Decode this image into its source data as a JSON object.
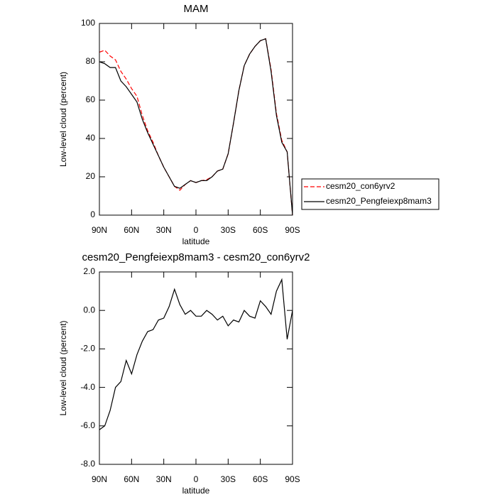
{
  "chart_data": [
    {
      "type": "line",
      "title": "MAM",
      "xlabel": "latitude",
      "ylabel": "Low-level cloud (percent)",
      "x": [
        90,
        85,
        80,
        75,
        70,
        65,
        60,
        55,
        50,
        45,
        40,
        35,
        30,
        25,
        20,
        15,
        10,
        5,
        0,
        -5,
        -10,
        -15,
        -20,
        -25,
        -30,
        -35,
        -40,
        -45,
        -50,
        -55,
        -60,
        -65,
        -70,
        -75,
        -80,
        -85,
        -90
      ],
      "series": [
        {
          "name": "cesm20_con6yrv2",
          "color": "#ff0000",
          "dash": true,
          "values": [
            85,
            86,
            83,
            81,
            75,
            71,
            66,
            62,
            52,
            44,
            38,
            31,
            25,
            20,
            15,
            13,
            16,
            18,
            17,
            18,
            18.5,
            20,
            23,
            24,
            32,
            48,
            65,
            78,
            84,
            88,
            91,
            92,
            76,
            53,
            39,
            33,
            0
          ]
        },
        {
          "name": "cesm20_Pengfeiexp8mam3",
          "color": "#000000",
          "dash": false,
          "values": [
            80,
            79,
            77,
            77,
            70,
            67,
            63,
            59,
            50,
            43,
            37,
            31,
            25,
            20,
            15,
            14,
            16,
            18,
            17,
            18,
            18,
            20,
            23,
            24,
            32,
            48,
            65,
            78,
            84,
            88,
            91,
            92,
            75,
            52,
            38,
            33,
            0
          ]
        }
      ],
      "xlim": [
        90,
        -90
      ],
      "xticks": [
        {
          "value": 90,
          "label": "90N"
        },
        {
          "value": 60,
          "label": "60N"
        },
        {
          "value": 30,
          "label": "30N"
        },
        0,
        {
          "value": -30,
          "label": "30S"
        },
        {
          "value": -60,
          "label": "60S"
        },
        {
          "value": -90,
          "label": "90S"
        }
      ],
      "ylim": [
        0,
        100
      ],
      "yticks": [
        0,
        20,
        40,
        60,
        80,
        100
      ],
      "legend": "right"
    },
    {
      "type": "line",
      "title": "cesm20_Pengfeiexp8mam3 - cesm20_con6yrv2",
      "xlabel": "latitude",
      "ylabel": "Low-level cloud (percent)",
      "x": [
        90,
        85,
        80,
        75,
        70,
        65,
        60,
        55,
        50,
        45,
        40,
        35,
        30,
        25,
        20,
        15,
        10,
        5,
        0,
        -5,
        -10,
        -15,
        -20,
        -25,
        -30,
        -35,
        -40,
        -45,
        -50,
        -55,
        -60,
        -65,
        -70,
        -75,
        -80,
        -85,
        -90
      ],
      "series": [
        {
          "color": "#000000",
          "dash": false,
          "values": [
            -6.2,
            -6.0,
            -5.2,
            -4.0,
            -3.7,
            -2.6,
            -3.3,
            -2.3,
            -1.6,
            -1.1,
            -1.0,
            -0.5,
            -0.4,
            0.2,
            1.1,
            0.3,
            -0.2,
            0.0,
            -0.3,
            -0.3,
            0.0,
            -0.2,
            -0.5,
            -0.3,
            -0.8,
            -0.5,
            -0.6,
            0.0,
            -0.3,
            -0.4,
            0.5,
            0.2,
            -0.2,
            1.0,
            1.6,
            -1.5,
            0.0
          ]
        }
      ],
      "xlim": [
        90,
        -90
      ],
      "xticks": [
        {
          "value": 90,
          "label": "90N"
        },
        {
          "value": 60,
          "label": "60N"
        },
        {
          "value": 30,
          "label": "30N"
        },
        0,
        {
          "value": -30,
          "label": "30S"
        },
        {
          "value": -60,
          "label": "60S"
        },
        {
          "value": -90,
          "label": "90S"
        }
      ],
      "ylim": [
        -8,
        2
      ],
      "yticks": [
        {
          "value": -8,
          "label": "-8.0"
        },
        {
          "value": -6,
          "label": "-6.0"
        },
        {
          "value": -4,
          "label": "-4.0"
        },
        {
          "value": -2,
          "label": "-2.0"
        },
        {
          "value": 0,
          "label": "0.0"
        },
        {
          "value": 2,
          "label": "2.0"
        }
      ]
    }
  ]
}
